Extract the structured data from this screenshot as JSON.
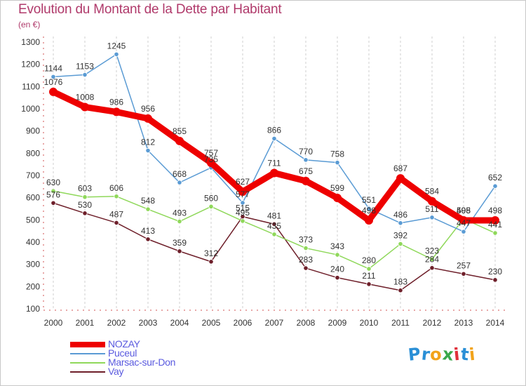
{
  "header": {
    "title": "Evolution du Montant de la Dette par Habitant",
    "subtitle": "(en €)"
  },
  "logo": {
    "text": "Proxiti",
    "letters": [
      {
        "ch": "P",
        "color": "#2a8fd6"
      },
      {
        "ch": "r",
        "color": "#2a8fd6"
      },
      {
        "ch": "o",
        "color": "#f2a31b"
      },
      {
        "ch": "x",
        "color": "#3aa84a"
      },
      {
        "ch": "i",
        "color": "#e0303a"
      },
      {
        "ch": "t",
        "color": "#2a8fd6"
      },
      {
        "ch": "i",
        "color": "#f2a31b"
      }
    ]
  },
  "chart_data": {
    "type": "line",
    "title": "Evolution du Montant de la Dette par Habitant",
    "ylabel_unit": "(en €)",
    "ylim": [
      100,
      1300
    ],
    "yticks": [
      100,
      200,
      300,
      400,
      500,
      600,
      700,
      800,
      900,
      1000,
      1100,
      1200,
      1300
    ],
    "x": [
      2000,
      2001,
      2002,
      2003,
      2004,
      2005,
      2006,
      2007,
      2008,
      2009,
      2010,
      2011,
      2012,
      2013,
      2014
    ],
    "grid": "vertical-dashed",
    "legend_position": "bottom-left",
    "series": [
      {
        "name": "Vay",
        "color": "#6e1f2a",
        "values": [
          576,
          530,
          487,
          413,
          359,
          312,
          515,
          481,
          283,
          240,
          211,
          183,
          284,
          257,
          230
        ]
      },
      {
        "name": "Marsac-sur-Don",
        "color": "#8fd85a",
        "values": [
          630,
          603,
          606,
          548,
          493,
          560,
          495,
          435,
          373,
          343,
          280,
          392,
          323,
          505,
          441
        ]
      },
      {
        "name": "Puceul",
        "color": "#5a9bd4",
        "values": [
          1144,
          1153,
          1245,
          812,
          668,
          735,
          577,
          866,
          770,
          758,
          551,
          486,
          511,
          447,
          652
        ]
      },
      {
        "name": "NOZAY",
        "color": "#ee0000",
        "values": [
          1076,
          1008,
          986,
          956,
          855,
          757,
          627,
          711,
          675,
          599,
          498,
          687,
          584,
          498,
          498
        ]
      }
    ],
    "legend_order": [
      "NOZAY",
      "Puceul",
      "Marsac-sur-Don",
      "Vay"
    ]
  }
}
